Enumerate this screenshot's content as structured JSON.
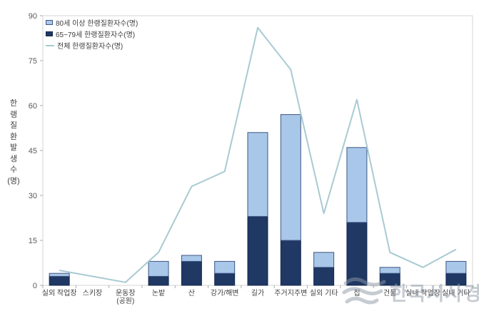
{
  "figure": {
    "watermark": {
      "text": "한국시사경제",
      "logo": "wave-swoosh-logo",
      "color": "#8E99A6"
    },
    "colors": {
      "bar_80plus_fill": "#A9C7E8",
      "bar_80plus_border": "#3E5684",
      "bar_65_79_fill": "#1F3864",
      "bar_65_79_border": "#16294D",
      "line_total": "#A8CAD3",
      "plot_border": "#D4D4D4",
      "tick_mark": "#ABABAB",
      "tick_text": "#595959",
      "category_text": "#404040"
    }
  },
  "chart_data": {
    "type": "bar",
    "subtype": "stacked bars with total line overlay",
    "title": "",
    "xlabel": "",
    "ylabel": "한랭질환발생수(명)",
    "ylabel_vertical_chars": [
      "한",
      "랭",
      "질",
      "환",
      "발",
      "생",
      "수",
      "(명)"
    ],
    "ylim": [
      0,
      90
    ],
    "yticks": [
      0,
      15,
      30,
      45,
      60,
      75,
      90
    ],
    "grid": false,
    "legend_position": "top-left inside plot area",
    "categories": [
      "실외 작업장",
      "스키장",
      "운동장\n(공원)",
      "논밭",
      "산",
      "강가/해변",
      "길가",
      "주거지주변",
      "실외 기타",
      "집",
      "건물",
      "실내 작업장",
      "실내 기타"
    ],
    "series": [
      {
        "name": "80세 이상 한랭질환자수(명)",
        "role": "stack-top",
        "marker": "light-blue-square",
        "values": [
          1,
          0,
          0,
          5,
          2,
          4,
          28,
          42,
          5,
          25,
          2,
          0,
          4
        ]
      },
      {
        "name": "65~79세 한랭질환자수(명)",
        "role": "stack-bottom",
        "marker": "navy-square",
        "values": [
          3,
          0,
          0,
          3,
          8,
          4,
          23,
          15,
          6,
          21,
          4,
          0,
          4
        ]
      },
      {
        "name": "전체 한랭질환자수(명)",
        "role": "line",
        "marker": "light-blue-line",
        "values": [
          5,
          3,
          1,
          11,
          33,
          38,
          86,
          72,
          24,
          62,
          11,
          6,
          12
        ]
      }
    ]
  }
}
